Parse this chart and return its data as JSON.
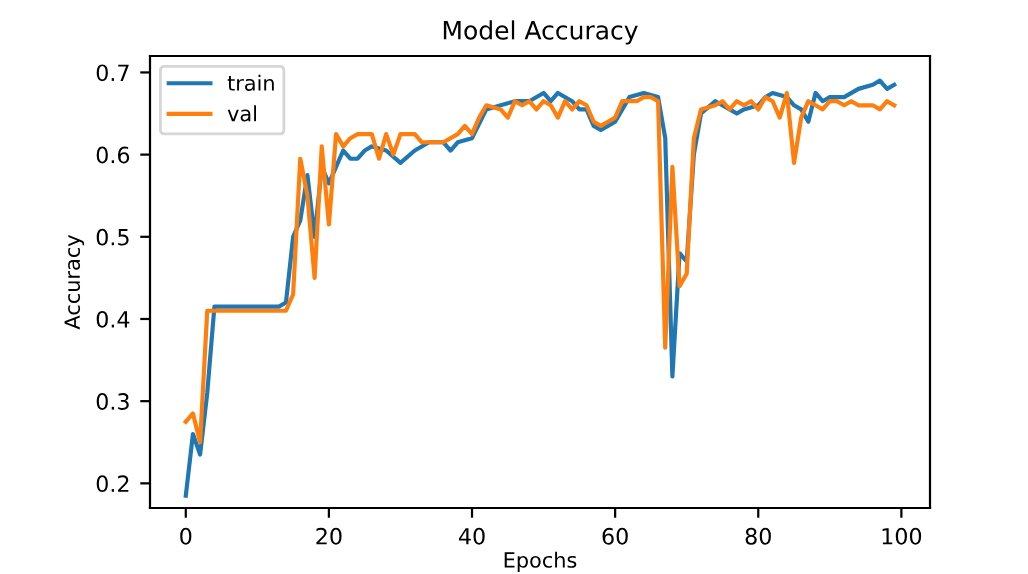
{
  "chart_data": {
    "type": "line",
    "title": "Model Accuracy",
    "xlabel": "Epochs",
    "ylabel": "Accuracy",
    "xlim": [
      -5,
      104
    ],
    "ylim": [
      0.17,
      0.72
    ],
    "xticks": [
      0,
      20,
      40,
      60,
      80,
      100
    ],
    "yticks": [
      0.2,
      0.3,
      0.4,
      0.5,
      0.6,
      0.7
    ],
    "grid": false,
    "legend": "top left",
    "series": [
      {
        "name": "train",
        "color": "#1f77b4",
        "x": [
          0,
          1,
          2,
          3,
          4,
          13,
          14,
          15,
          16,
          17,
          18,
          19,
          20,
          21,
          22,
          23,
          24,
          25,
          26,
          28,
          30,
          32,
          34,
          36,
          37,
          38,
          40,
          42,
          44,
          46,
          48,
          50,
          51,
          52,
          54,
          55,
          56,
          57,
          58,
          59,
          60,
          62,
          64,
          66,
          67,
          68,
          69,
          70,
          71,
          72,
          74,
          76,
          77,
          78,
          80,
          81,
          82,
          84,
          85,
          86,
          87,
          88,
          89,
          90,
          92,
          94,
          96,
          97,
          98,
          99
        ],
        "values": [
          0.185,
          0.26,
          0.235,
          0.31,
          0.415,
          0.415,
          0.42,
          0.5,
          0.52,
          0.575,
          0.5,
          0.585,
          0.565,
          0.585,
          0.605,
          0.595,
          0.595,
          0.605,
          0.61,
          0.605,
          0.59,
          0.605,
          0.615,
          0.615,
          0.605,
          0.615,
          0.62,
          0.655,
          0.66,
          0.665,
          0.665,
          0.675,
          0.665,
          0.675,
          0.665,
          0.655,
          0.655,
          0.635,
          0.63,
          0.635,
          0.64,
          0.67,
          0.675,
          0.67,
          0.62,
          0.33,
          0.48,
          0.47,
          0.6,
          0.65,
          0.665,
          0.655,
          0.65,
          0.655,
          0.66,
          0.67,
          0.675,
          0.67,
          0.66,
          0.655,
          0.64,
          0.675,
          0.665,
          0.67,
          0.67,
          0.68,
          0.685,
          0.69,
          0.68,
          0.685
        ]
      },
      {
        "name": "val",
        "color": "#ff7f0e",
        "x": [
          0,
          1,
          2,
          3,
          4,
          14,
          15,
          16,
          17,
          18,
          19,
          20,
          21,
          22,
          23,
          24,
          25,
          26,
          27,
          28,
          29,
          30,
          32,
          33,
          34,
          36,
          38,
          39,
          40,
          41,
          42,
          44,
          45,
          46,
          47,
          48,
          49,
          50,
          51,
          52,
          53,
          54,
          55,
          56,
          57,
          58,
          59,
          60,
          61,
          62,
          63,
          64,
          65,
          66,
          67,
          68,
          69,
          70,
          71,
          72,
          74,
          75,
          76,
          77,
          78,
          79,
          80,
          81,
          82,
          83,
          84,
          85,
          86,
          87,
          88,
          89,
          90,
          91,
          92,
          93,
          94,
          95,
          96,
          97,
          98,
          99
        ],
        "values": [
          0.275,
          0.285,
          0.25,
          0.41,
          0.41,
          0.41,
          0.43,
          0.595,
          0.55,
          0.45,
          0.61,
          0.515,
          0.625,
          0.61,
          0.62,
          0.625,
          0.625,
          0.625,
          0.595,
          0.625,
          0.6,
          0.625,
          0.625,
          0.615,
          0.615,
          0.615,
          0.625,
          0.635,
          0.625,
          0.645,
          0.66,
          0.655,
          0.645,
          0.665,
          0.66,
          0.665,
          0.655,
          0.665,
          0.66,
          0.645,
          0.665,
          0.655,
          0.665,
          0.66,
          0.64,
          0.635,
          0.64,
          0.645,
          0.665,
          0.665,
          0.665,
          0.67,
          0.67,
          0.665,
          0.365,
          0.585,
          0.44,
          0.455,
          0.62,
          0.655,
          0.66,
          0.665,
          0.655,
          0.665,
          0.66,
          0.665,
          0.655,
          0.67,
          0.665,
          0.645,
          0.675,
          0.59,
          0.645,
          0.665,
          0.66,
          0.655,
          0.665,
          0.665,
          0.66,
          0.665,
          0.66,
          0.66,
          0.66,
          0.655,
          0.665,
          0.66
        ]
      }
    ]
  }
}
